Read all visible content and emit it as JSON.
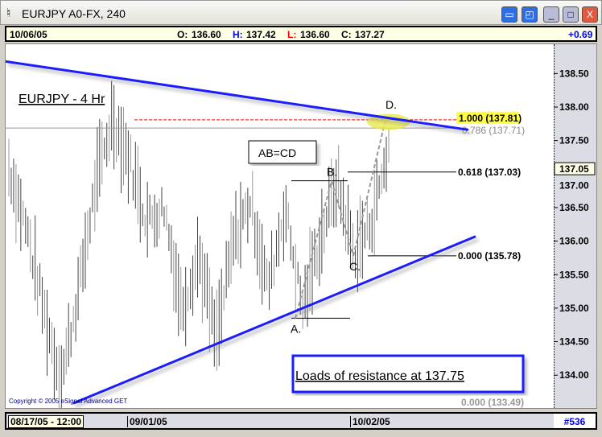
{
  "window": {
    "title": "EURJPY A0-FX, 240"
  },
  "info": {
    "date": "10/06/05",
    "open_label": "O:",
    "open": "136.60",
    "high_label": "H:",
    "high": "137.42",
    "low_label": "L:",
    "low": "136.60",
    "close_label": "C:",
    "close": "137.27",
    "change": "+0.69"
  },
  "bottom": {
    "cursor_date": "08/17/05 - 12:00",
    "date1": "09/01/05",
    "date2": "10/02/05",
    "bar_count": "#536"
  },
  "colors": {
    "trendline": "#1a1aff",
    "resistance_line": "#ff0000",
    "highlight": "#e8e84a",
    "change": "#0000ff"
  },
  "chart_data": {
    "type": "ohlc-bar",
    "title": "EURJPY - 4 Hr",
    "ylim": [
      133.6,
      138.9
    ],
    "yticks": [
      "138.50",
      "138.00",
      "137.50",
      "137.00",
      "136.50",
      "136.00",
      "135.50",
      "135.00",
      "134.50",
      "134.00"
    ],
    "last_price": "137.05",
    "price_path": [
      137.1,
      136.2,
      135.0,
      133.9,
      135.2,
      136.8,
      137.85,
      137.2,
      136.3,
      136.5,
      135.0,
      135.8,
      134.5,
      136.0,
      136.6,
      135.3,
      136.5,
      135.0,
      136.0,
      136.9,
      135.8,
      136.3,
      137.4
    ],
    "fib_levels": [
      {
        "label": "1.000 (137.81)",
        "value": 137.81
      },
      {
        "label": "0.786 (137.71)",
        "value": 137.71
      },
      {
        "label": "0.618 (137.03)",
        "value": 137.03
      },
      {
        "label": "0.000 (135.78)",
        "value": 135.78
      },
      {
        "label": "0.000 (133.49)",
        "value": 133.49
      }
    ],
    "points": [
      {
        "label": "A.",
        "value": 134.85
      },
      {
        "label": "B.",
        "value": 136.9
      },
      {
        "label": "C.",
        "value": 135.78
      },
      {
        "label": "D.",
        "value": 137.81
      }
    ],
    "annotations": {
      "pattern": "AB=CD",
      "note": "Loads of resistance at 137.75",
      "copyright": "Copyright © 2005 eSignal Advanced GET"
    },
    "trendlines": [
      {
        "from": 138.68,
        "to": 137.72
      },
      {
        "from": 133.58,
        "to": 136.07
      }
    ]
  }
}
